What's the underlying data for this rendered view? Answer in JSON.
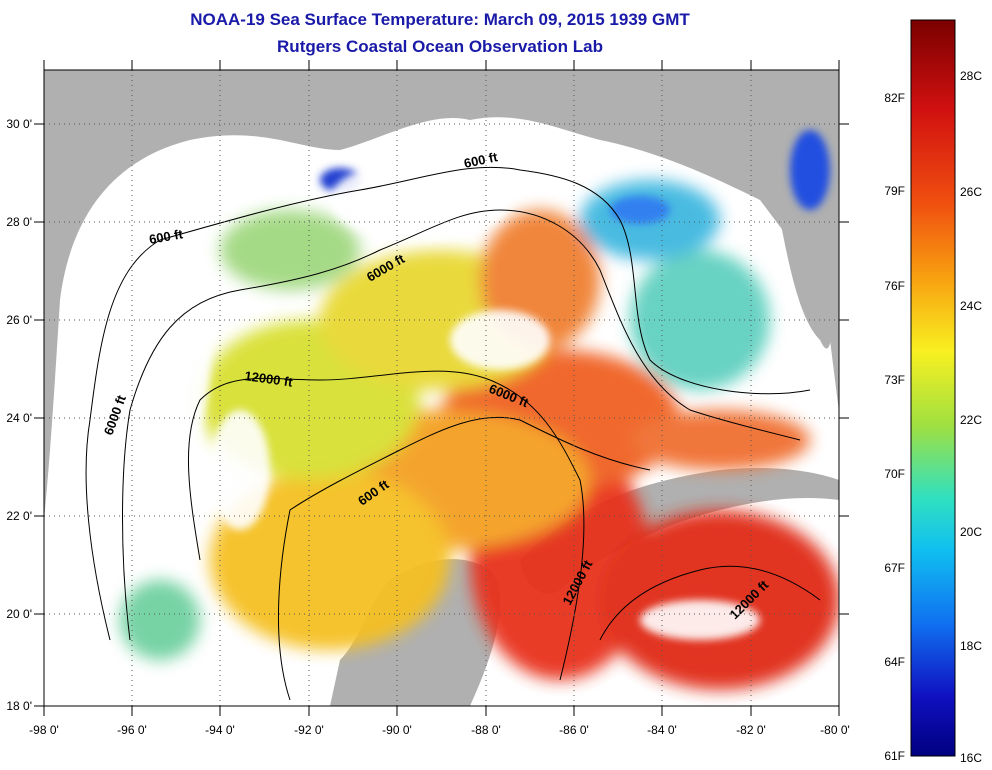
{
  "title": {
    "line1": "NOAA-19 Sea Surface Temperature:  March 09, 2015 1939 GMT",
    "line2": "Rutgers Coastal Ocean Observation Lab"
  },
  "map": {
    "lon_labels": [
      "-98 0'",
      "-96 0'",
      "-94 0'",
      "-92 0'",
      "-90 0'",
      "-88 0'",
      "-86 0'",
      "-84 0'",
      "-82 0'",
      "-80 0'"
    ],
    "lat_labels": [
      "30 0'",
      "28 0'",
      "26 0'",
      "24 0'",
      "22 0'",
      "20 0'",
      "18 0'"
    ],
    "contour_labels": [
      "600 ft",
      "600 ft",
      "6000 ft",
      "6000 ft",
      "12000 ft",
      "6000 ft",
      "600 ft",
      "12000 ft",
      "12000 ft"
    ],
    "colors": {
      "land": "#b0b0b0",
      "cloud": "#ffffff",
      "warm": "#e8341c",
      "mid": "#f5c020",
      "cool": "#40b8e0"
    }
  },
  "colorbar": {
    "f_labels": [
      "82F",
      "79F",
      "76F",
      "73F",
      "70F",
      "67F",
      "64F",
      "61F"
    ],
    "c_labels": [
      "28C",
      "26C",
      "24C",
      "22C",
      "20C",
      "18C",
      "16C"
    ],
    "colors": [
      "#7a0000",
      "#d01010",
      "#f05010",
      "#f8a010",
      "#f8f020",
      "#a0e040",
      "#30e0c0",
      "#10c0f0",
      "#1070f0",
      "#1010c0",
      "#000080"
    ]
  }
}
